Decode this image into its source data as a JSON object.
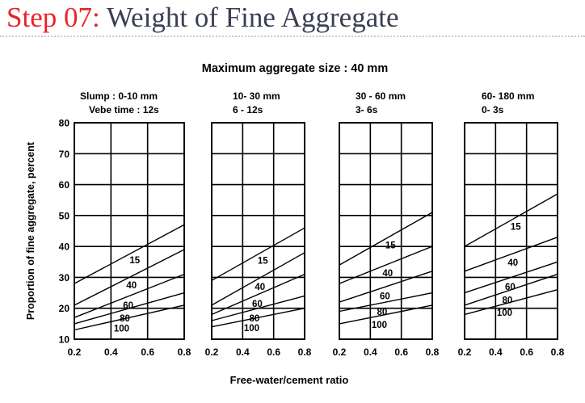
{
  "slide": {
    "title_step": "Step 07:",
    "title_rest": "Weight of Fine Aggregate"
  },
  "chart_data": {
    "type": "line",
    "title": "Maximum aggregate size : 40 mm",
    "xlabel": "Free-water/cement ratio",
    "ylabel": "Proportion of fine aggregate, percent",
    "xlim": [
      0.2,
      0.8
    ],
    "ylim": [
      10,
      80
    ],
    "x_ticks": [
      "0.2",
      "0.4",
      "0.6",
      "0.8"
    ],
    "y_ticks": [
      "10",
      "20",
      "30",
      "40",
      "50",
      "60",
      "70",
      "80"
    ],
    "grid": true,
    "panels": [
      {
        "header": [
          "Slump : 0-10 mm",
          "Vebe time : 12s"
        ],
        "series": [
          {
            "name": "15",
            "x": [
              0.2,
              0.8
            ],
            "y": [
              28,
              47
            ]
          },
          {
            "name": "40",
            "x": [
              0.2,
              0.8
            ],
            "y": [
              21,
              39
            ]
          },
          {
            "name": "60",
            "x": [
              0.2,
              0.8
            ],
            "y": [
              17,
              31
            ]
          },
          {
            "name": "80",
            "x": [
              0.2,
              0.8
            ],
            "y": [
              15,
              25
            ]
          },
          {
            "name": "100",
            "x": [
              0.2,
              0.8
            ],
            "y": [
              13,
              21
            ]
          }
        ]
      },
      {
        "header": [
          "10- 30 mm",
          "6 - 12s"
        ],
        "series": [
          {
            "name": "15",
            "x": [
              0.2,
              0.8
            ],
            "y": [
              29,
              46
            ]
          },
          {
            "name": "40",
            "x": [
              0.2,
              0.8
            ],
            "y": [
              21,
              38
            ]
          },
          {
            "name": "60",
            "x": [
              0.2,
              0.8
            ],
            "y": [
              18,
              31
            ]
          },
          {
            "name": "80",
            "x": [
              0.2,
              0.8
            ],
            "y": [
              16,
              24
            ]
          },
          {
            "name": "100",
            "x": [
              0.2,
              0.8
            ],
            "y": [
              14,
              20
            ]
          }
        ]
      },
      {
        "header": [
          "30 - 60 mm",
          "3- 6s"
        ],
        "series": [
          {
            "name": "15",
            "x": [
              0.2,
              0.8
            ],
            "y": [
              34,
              51
            ]
          },
          {
            "name": "40",
            "x": [
              0.2,
              0.8
            ],
            "y": [
              28,
              40
            ]
          },
          {
            "name": "60",
            "x": [
              0.2,
              0.8
            ],
            "y": [
              22,
              32
            ]
          },
          {
            "name": "80",
            "x": [
              0.2,
              0.8
            ],
            "y": [
              19,
              25
            ]
          },
          {
            "name": "100",
            "x": [
              0.2,
              0.8
            ],
            "y": [
              15,
              21
            ]
          }
        ]
      },
      {
        "header": [
          "60- 180 mm",
          "0- 3s"
        ],
        "series": [
          {
            "name": "15",
            "x": [
              0.2,
              0.8
            ],
            "y": [
              40,
              57
            ]
          },
          {
            "name": "40",
            "x": [
              0.2,
              0.8
            ],
            "y": [
              32,
              43
            ]
          },
          {
            "name": "60",
            "x": [
              0.2,
              0.8
            ],
            "y": [
              25,
              35
            ]
          },
          {
            "name": "80",
            "x": [
              0.2,
              0.8
            ],
            "y": [
              21,
              31
            ]
          },
          {
            "name": "100",
            "x": [
              0.2,
              0.8
            ],
            "y": [
              18,
              26
            ]
          }
        ]
      }
    ]
  }
}
